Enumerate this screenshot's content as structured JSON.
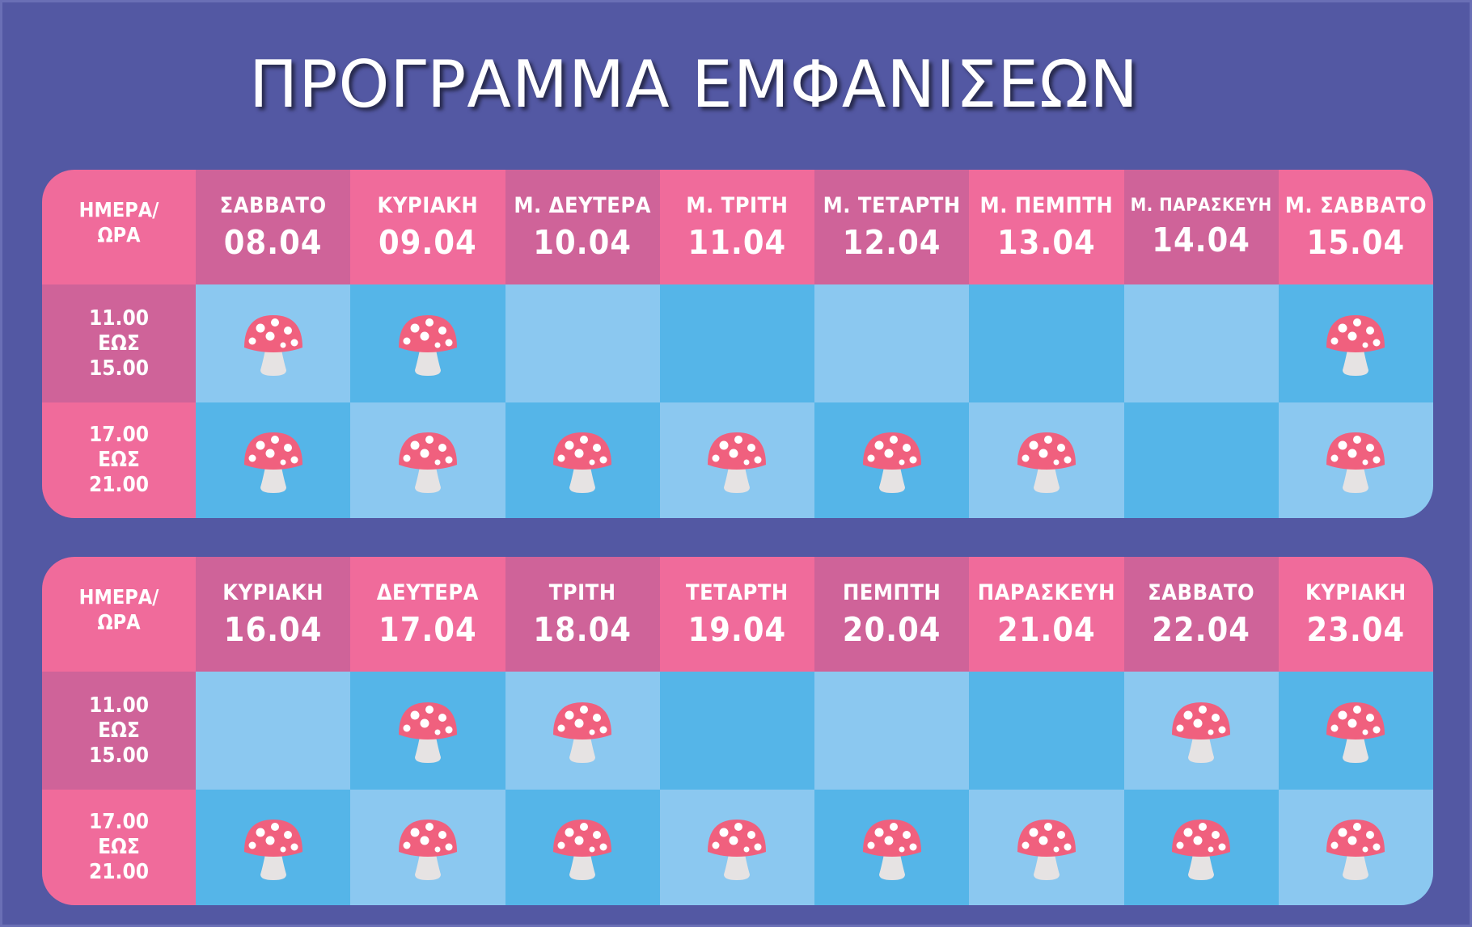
{
  "title": "ΠΡΟΓΡΑΜΜΑ ΕΜΦΑΝΙΣΕΩΝ",
  "colors": {
    "background": "#5358a3",
    "header_pink": "#f06b9b",
    "header_magenta": "#cf6399",
    "cell_light_blue": "#8bc8f0",
    "cell_dark_blue": "#55b5e8",
    "mushroom_cap": "#f0607e",
    "mushroom_stem": "#e6e3e3"
  },
  "icon": "mushroom-icon",
  "tables": [
    {
      "corner_label": [
        "ΗΜΕΡΑ/",
        "ΩΡΑ"
      ],
      "days": [
        {
          "name": "ΣΑΒΒΑΤΟ",
          "date": "08.04"
        },
        {
          "name": "ΚΥΡΙΑΚΗ",
          "date": "09.04"
        },
        {
          "name": "Μ. ΔΕΥΤΕΡΑ",
          "date": "10.04"
        },
        {
          "name": "Μ. ΤΡΙΤΗ",
          "date": "11.04"
        },
        {
          "name": "Μ. ΤΕΤΑΡΤΗ",
          "date": "12.04"
        },
        {
          "name": "Μ. ΠΕΜΠΤΗ",
          "date": "13.04"
        },
        {
          "name": "Μ. ΠΑΡΑΣΚΕΥΗ",
          "date": "14.04"
        },
        {
          "name": "Μ. ΣΑΒΒΑΤΟ",
          "date": "15.04"
        }
      ],
      "slots": [
        {
          "time": [
            "11.00",
            "ΕΩΣ",
            "15.00"
          ],
          "shows": [
            true,
            true,
            false,
            false,
            false,
            false,
            false,
            true
          ]
        },
        {
          "time": [
            "17.00",
            "ΕΩΣ",
            "21.00"
          ],
          "shows": [
            true,
            true,
            true,
            true,
            true,
            true,
            false,
            true
          ]
        }
      ]
    },
    {
      "corner_label": [
        "ΗΜΕΡΑ/",
        "ΩΡΑ"
      ],
      "days": [
        {
          "name": "ΚΥΡΙΑΚΗ",
          "date": "16.04"
        },
        {
          "name": "ΔΕΥΤΕΡΑ",
          "date": "17.04"
        },
        {
          "name": "ΤΡΙΤΗ",
          "date": "18.04"
        },
        {
          "name": "ΤΕΤΑΡΤΗ",
          "date": "19.04"
        },
        {
          "name": "ΠΕΜΠΤΗ",
          "date": "20.04"
        },
        {
          "name": "ΠΑΡΑΣΚΕΥΗ",
          "date": "21.04"
        },
        {
          "name": "ΣΑΒΒΑΤΟ",
          "date": "22.04"
        },
        {
          "name": "ΚΥΡΙΑΚΗ",
          "date": "23.04"
        }
      ],
      "slots": [
        {
          "time": [
            "11.00",
            "ΕΩΣ",
            "15.00"
          ],
          "shows": [
            false,
            true,
            true,
            false,
            false,
            false,
            true,
            true
          ]
        },
        {
          "time": [
            "17.00",
            "ΕΩΣ",
            "21.00"
          ],
          "shows": [
            true,
            true,
            true,
            true,
            true,
            true,
            true,
            true
          ]
        }
      ]
    }
  ]
}
